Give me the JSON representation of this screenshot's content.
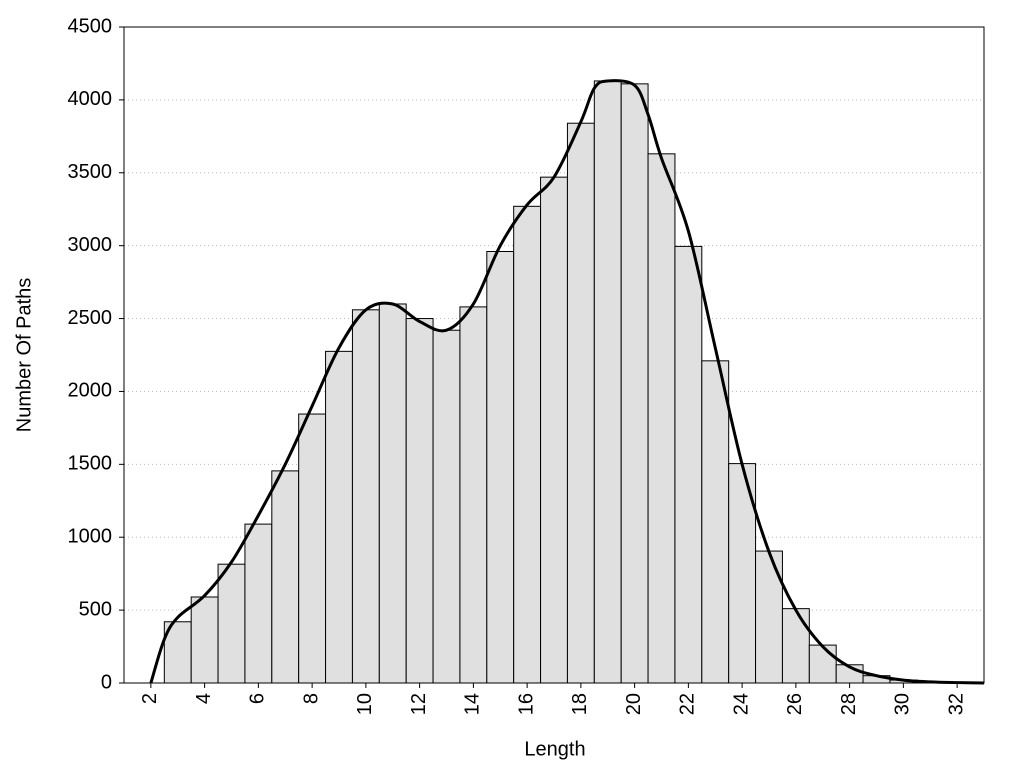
{
  "chart_data": {
    "type": "histogram",
    "xlabel": "Length",
    "ylabel": "Number Of Paths",
    "bins": [
      2.5,
      3.5,
      4.5,
      5.5,
      6.5,
      7.5,
      8.5,
      9.5,
      10.5,
      11.5,
      12.5,
      13.5,
      14.5,
      15.5,
      16.5,
      17.5,
      18.5,
      19.5,
      20.5,
      21.5,
      22.5,
      23.5,
      24.5,
      25.5,
      26.5,
      27.5,
      28.5,
      29.5,
      30.5,
      31.5,
      32.5
    ],
    "values": [
      420,
      590,
      815,
      1090,
      1455,
      1845,
      2275,
      2560,
      2600,
      2500,
      2420,
      2580,
      2960,
      3270,
      3470,
      3840,
      4130,
      4110,
      3630,
      2995,
      2210,
      1505,
      905,
      510,
      260,
      125,
      50,
      20,
      10,
      5
    ],
    "color": "#e0e0e0",
    "curve": {
      "color": "#000000",
      "x": [
        2,
        2.5,
        3,
        4,
        5,
        6,
        7,
        8,
        9,
        10,
        11,
        12,
        13,
        14,
        15,
        16,
        17,
        18,
        18.5,
        19,
        20,
        20.5,
        21,
        22,
        23,
        24,
        25,
        26,
        27,
        28,
        29,
        30,
        31,
        32,
        33
      ],
      "values": [
        0,
        300,
        450,
        600,
        830,
        1150,
        1500,
        1900,
        2300,
        2560,
        2600,
        2480,
        2420,
        2600,
        3000,
        3280,
        3470,
        3850,
        4080,
        4130,
        4100,
        3900,
        3600,
        3100,
        2300,
        1500,
        900,
        500,
        250,
        110,
        50,
        20,
        8,
        3,
        0
      ]
    },
    "xlim": [
      1,
      33
    ],
    "ylim": [
      0,
      4500
    ],
    "xticks": [
      2,
      4,
      6,
      8,
      10,
      12,
      14,
      16,
      18,
      20,
      22,
      24,
      26,
      28,
      30,
      32
    ],
    "yticks": [
      0,
      500,
      1000,
      1500,
      2000,
      2500,
      3000,
      3500,
      4000,
      4500
    ],
    "grid": true
  }
}
